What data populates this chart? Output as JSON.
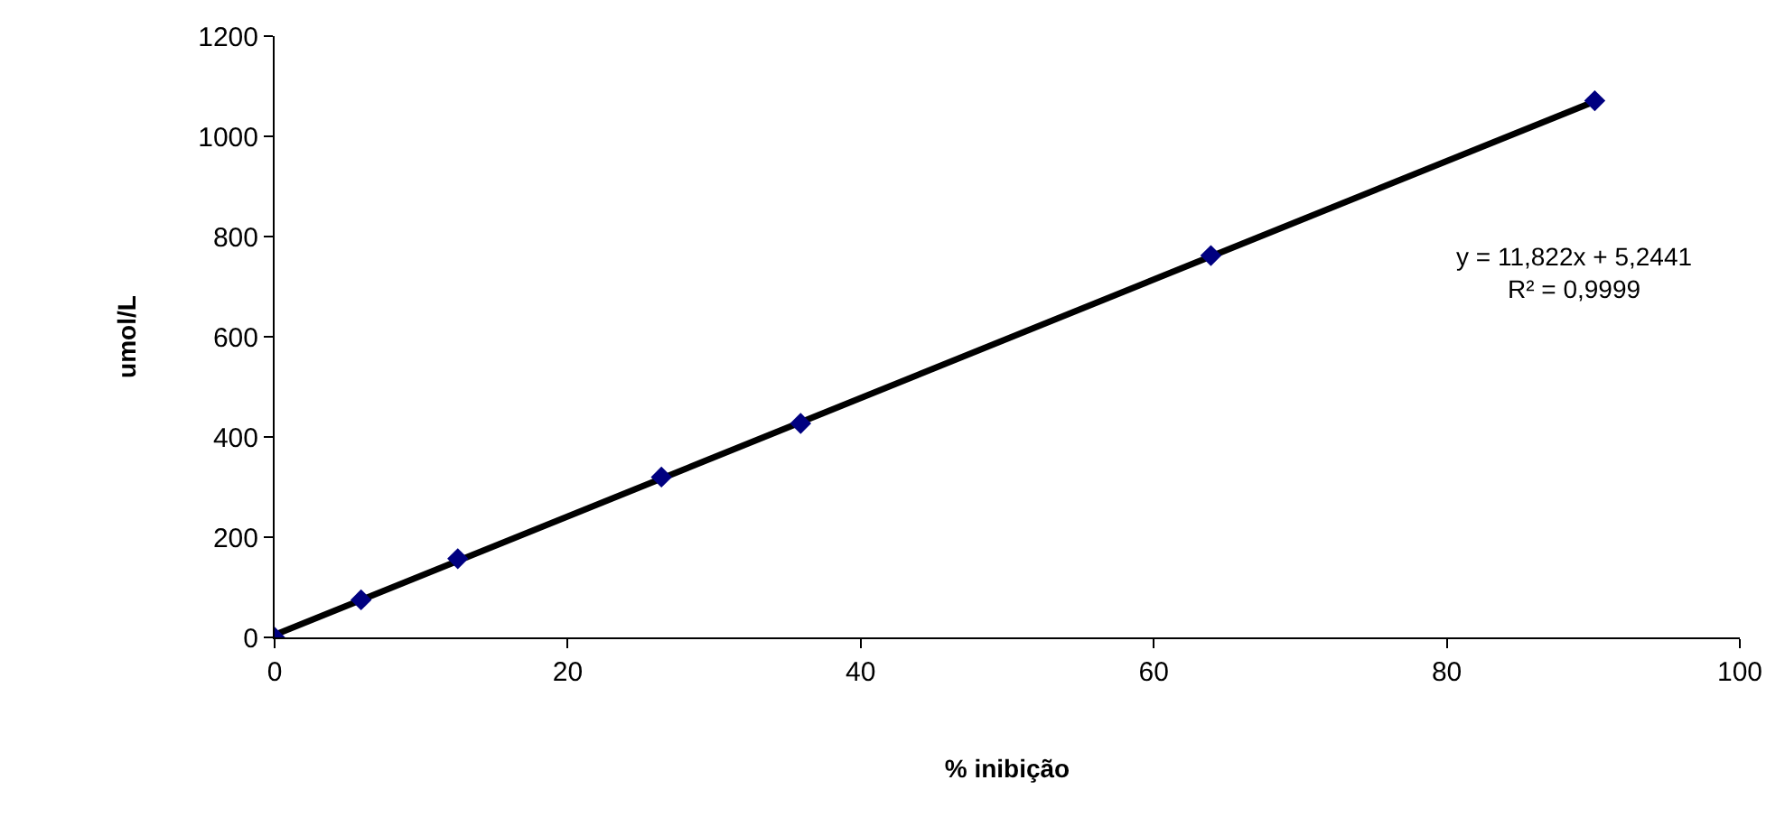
{
  "chart_data": {
    "type": "scatter",
    "xlabel": "% inibição",
    "ylabel": "umol/L",
    "series": [
      {
        "color": "#000080",
        "marker": "diamond",
        "x": [
          0,
          5.9,
          12.5,
          26.4,
          35.9,
          63.9,
          90.1
        ],
        "values": [
          0,
          75,
          157,
          320,
          427,
          762,
          1071
        ]
      },
      {
        "type": "line",
        "color": "#000000",
        "marker": "none",
        "line_style": "solid",
        "x": [
          0,
          90.1
        ],
        "values": [
          5,
          1070
        ]
      }
    ],
    "xlim": [
      0,
      100
    ],
    "xticks": [
      0,
      20,
      40,
      60,
      80,
      100
    ],
    "ylim": [
      0,
      1200
    ],
    "yticks": [
      0,
      200,
      400,
      600,
      800,
      1000,
      1200
    ],
    "annotations": [
      "y = 11,822x + 5,2441\nR² = 0,9999"
    ]
  }
}
